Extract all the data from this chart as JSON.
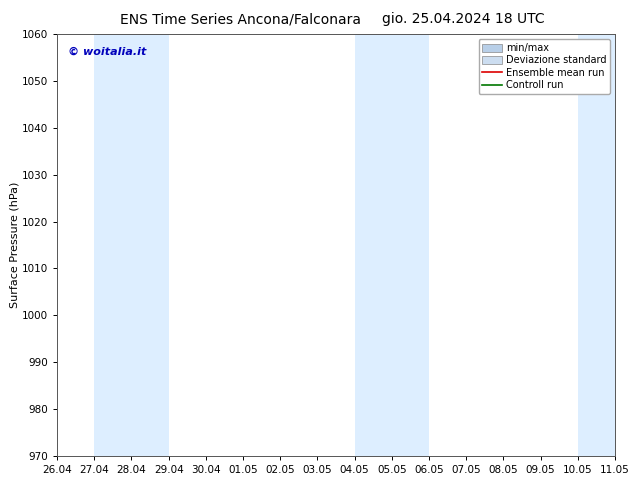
{
  "title_left": "ENS Time Series Ancona/Falconara",
  "title_right": "gio. 25.04.2024 18 UTC",
  "ylabel": "Surface Pressure (hPa)",
  "ylim": [
    970,
    1060
  ],
  "yticks": [
    970,
    980,
    990,
    1000,
    1010,
    1020,
    1030,
    1040,
    1050,
    1060
  ],
  "xtick_labels": [
    "26.04",
    "27.04",
    "28.04",
    "29.04",
    "30.04",
    "01.05",
    "02.05",
    "03.05",
    "04.05",
    "05.05",
    "06.05",
    "07.05",
    "08.05",
    "09.05",
    "10.05",
    "11.05"
  ],
  "xtick_positions": [
    0,
    1,
    2,
    3,
    4,
    5,
    6,
    7,
    8,
    9,
    10,
    11,
    12,
    13,
    14,
    15
  ],
  "xlim_start": 0,
  "xlim_end": 15,
  "shaded_bands": [
    {
      "xmin": 1,
      "xmax": 3,
      "color": "#ddeeff"
    },
    {
      "xmin": 8,
      "xmax": 10,
      "color": "#ddeeff"
    },
    {
      "xmin": 14,
      "xmax": 15,
      "color": "#ddeeff"
    }
  ],
  "watermark": "© woitalia.it",
  "watermark_color": "#0000bb",
  "bg_color": "#ffffff",
  "legend_items": [
    {
      "label": "min/max",
      "color": "#b8cfe8",
      "lw": 5,
      "type": "bar"
    },
    {
      "label": "Deviazione standard",
      "color": "#ccddf0",
      "lw": 5,
      "type": "bar"
    },
    {
      "label": "Ensemble mean run",
      "color": "#dd0000",
      "lw": 1.2,
      "type": "line"
    },
    {
      "label": "Controll run",
      "color": "#007700",
      "lw": 1.2,
      "type": "line"
    }
  ],
  "title_fontsize": 10,
  "ylabel_fontsize": 8,
  "tick_fontsize": 7.5,
  "watermark_fontsize": 8,
  "legend_fontsize": 7
}
